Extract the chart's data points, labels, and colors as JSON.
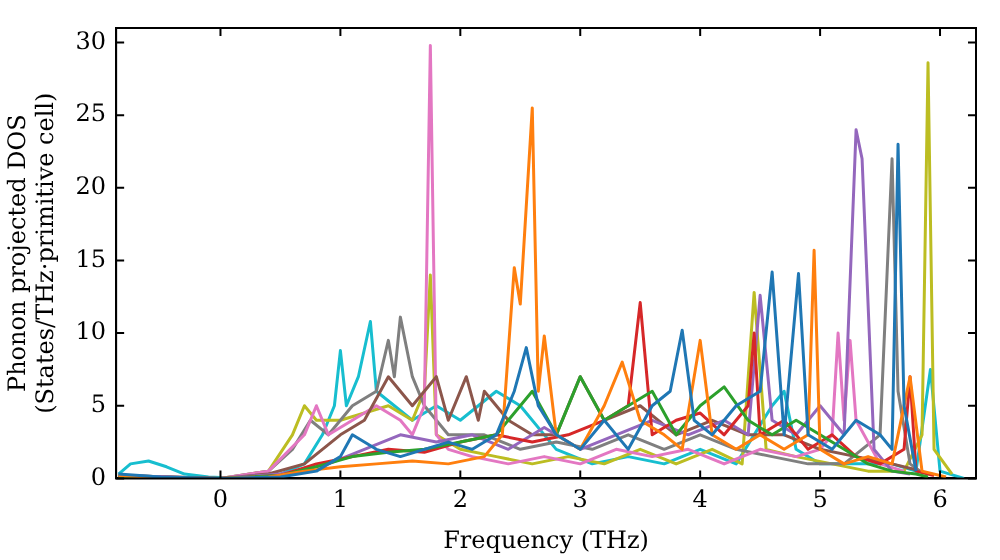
{
  "chart_data": {
    "type": "line",
    "xlabel": "Frequency (THz)",
    "ylabel": "Phonon projected DOS\n(States/THz·primitive cell)",
    "xlim": [
      -0.87,
      6.3
    ],
    "ylim": [
      0,
      31
    ],
    "xticks": [
      0,
      1,
      2,
      3,
      4,
      5,
      6
    ],
    "yticks": [
      0,
      5,
      10,
      15,
      20,
      25,
      30
    ],
    "legend": false,
    "marker": "none",
    "line_style": "solid",
    "series": [
      {
        "color": "#1f77b4",
        "x": [
          -0.85,
          -0.5,
          0,
          0.5,
          0.8,
          1.0,
          1.1,
          1.3,
          1.5,
          1.7,
          1.9,
          2.1,
          2.3,
          2.45,
          2.55,
          2.65,
          2.8,
          3.0,
          3.2,
          3.4,
          3.6,
          3.75,
          3.85,
          3.95,
          4.1,
          4.3,
          4.5,
          4.6,
          4.7,
          4.82,
          4.9,
          5.1,
          5.3,
          5.5,
          5.6,
          5.65,
          5.7,
          5.8
        ],
        "values": [
          0.3,
          0.1,
          0,
          0.1,
          0.5,
          1.5,
          3,
          2,
          1.5,
          2,
          2.5,
          2,
          3,
          6,
          9,
          5,
          3,
          2,
          4,
          2,
          5,
          6,
          10.2,
          4,
          3,
          5,
          6,
          14.2,
          3,
          14.1,
          3,
          2,
          4,
          3,
          2,
          23,
          5,
          0.5
        ]
      },
      {
        "color": "#ff7f0e",
        "x": [
          -0.85,
          -0.4,
          0,
          0.4,
          0.7,
          1.0,
          1.3,
          1.6,
          1.9,
          2.2,
          2.35,
          2.45,
          2.5,
          2.6,
          2.65,
          2.7,
          2.8,
          3.0,
          3.2,
          3.35,
          3.5,
          3.7,
          3.85,
          4.0,
          4.1,
          4.3,
          4.5,
          4.7,
          4.9,
          4.95,
          5.0,
          5.2,
          5.4,
          5.6,
          5.75,
          5.85,
          6.05
        ],
        "values": [
          0.2,
          0,
          0,
          0.1,
          0.5,
          0.8,
          1,
          1.2,
          1,
          1.5,
          3,
          14.5,
          12,
          25.5,
          6,
          9.8,
          3,
          2,
          5,
          8,
          4,
          3,
          2,
          9.5,
          3,
          2,
          3,
          2,
          3,
          15.7,
          2,
          1,
          1.5,
          1,
          7,
          0.5,
          0.1
        ]
      },
      {
        "color": "#2ca02c",
        "x": [
          -0.85,
          0,
          0.5,
          0.8,
          1.1,
          1.4,
          1.7,
          2.0,
          2.3,
          2.6,
          2.8,
          3.0,
          3.2,
          3.4,
          3.6,
          3.8,
          4.0,
          4.2,
          4.4,
          4.6,
          4.8,
          5.0,
          5.2,
          5.4,
          5.6,
          5.8,
          5.9
        ],
        "values": [
          0.1,
          0,
          0.2,
          0.8,
          1.5,
          1.8,
          2,
          2.5,
          3,
          6,
          3,
          7,
          4,
          5,
          6,
          3,
          5,
          6.3,
          4,
          3,
          4,
          3,
          2,
          1,
          0.5,
          0.3,
          0.1
        ]
      },
      {
        "color": "#d62728",
        "x": [
          -0.85,
          0,
          0.5,
          0.8,
          1.1,
          1.4,
          1.7,
          2.0,
          2.3,
          2.6,
          2.9,
          3.2,
          3.4,
          3.5,
          3.6,
          3.8,
          4.0,
          4.2,
          4.4,
          4.45,
          4.5,
          4.7,
          4.9,
          5.1,
          5.3,
          5.5,
          5.7,
          5.75,
          5.8,
          5.95
        ],
        "values": [
          0.1,
          0,
          0.2,
          1,
          1.5,
          2,
          1.8,
          2.5,
          3,
          2.5,
          3,
          4,
          5,
          12.1,
          3,
          4,
          4.5,
          3,
          5,
          10,
          3,
          4,
          2,
          3,
          1.5,
          1,
          2,
          7,
          0.5,
          0.2
        ]
      },
      {
        "color": "#9467bd",
        "x": [
          -0.85,
          0,
          0.5,
          0.9,
          1.2,
          1.5,
          1.8,
          2.1,
          2.4,
          2.7,
          3.0,
          3.3,
          3.6,
          3.9,
          4.2,
          4.4,
          4.5,
          4.6,
          4.8,
          5.0,
          5.2,
          5.3,
          5.35,
          5.45,
          5.6,
          5.75
        ],
        "values": [
          0.2,
          0,
          0.3,
          1,
          2,
          3,
          2.5,
          3,
          2,
          3.5,
          2,
          3,
          4,
          3,
          4,
          3,
          12.6,
          4,
          3,
          5,
          3,
          24,
          22,
          2,
          0.5,
          0.3
        ]
      },
      {
        "color": "#8c564b",
        "x": [
          -0.85,
          0,
          0.4,
          0.7,
          1.0,
          1.2,
          1.4,
          1.6,
          1.8,
          1.9,
          2.05,
          2.15,
          2.2,
          2.4,
          2.6,
          2.8,
          3.0,
          3.2,
          3.5,
          3.8,
          4.1,
          4.4,
          4.7,
          5.0,
          5.3,
          5.6,
          5.8
        ],
        "values": [
          0.2,
          0,
          0.3,
          1,
          3,
          4,
          7,
          5,
          7,
          4,
          7,
          4,
          6,
          4,
          3,
          3,
          7,
          4,
          5,
          3,
          4,
          3,
          3,
          2,
          1.5,
          1,
          0.6
        ]
      },
      {
        "color": "#e377c2",
        "x": [
          0,
          0.4,
          0.7,
          0.8,
          0.9,
          1.1,
          1.3,
          1.5,
          1.6,
          1.7,
          1.75,
          1.8,
          1.9,
          2.1,
          2.4,
          2.7,
          3.0,
          3.3,
          3.6,
          3.9,
          4.2,
          4.5,
          4.8,
          5.0,
          5.1,
          5.15,
          5.2,
          5.25,
          5.3,
          5.5,
          5.7
        ],
        "values": [
          0,
          0.5,
          3,
          5,
          3,
          4,
          5,
          4,
          3,
          5,
          29.8,
          3,
          2,
          1.5,
          1,
          1.5,
          1,
          2,
          1.5,
          2,
          1,
          2,
          1.5,
          2,
          3,
          10,
          4,
          9.5,
          4,
          1,
          0.5
        ]
      },
      {
        "color": "#7f7f7f",
        "x": [
          -0.85,
          0,
          0.4,
          0.6,
          0.75,
          0.9,
          1.1,
          1.3,
          1.4,
          1.45,
          1.5,
          1.6,
          1.7,
          1.9,
          2.2,
          2.5,
          2.8,
          3.1,
          3.4,
          3.7,
          4.0,
          4.3,
          4.6,
          4.9,
          5.2,
          5.5,
          5.6,
          5.65,
          5.75,
          5.85
        ],
        "values": [
          0.2,
          0,
          0.5,
          2,
          4,
          3,
          5,
          6,
          9.5,
          7,
          11.1,
          7,
          5,
          3,
          3,
          2,
          2.5,
          2,
          3,
          2,
          3,
          2,
          1.5,
          1,
          1,
          3,
          22,
          6,
          1,
          0.4
        ]
      },
      {
        "color": "#bcbd22",
        "x": [
          -0.85,
          0,
          0.4,
          0.6,
          0.7,
          0.8,
          1.0,
          1.2,
          1.4,
          1.6,
          1.7,
          1.75,
          1.8,
          2.0,
          2.3,
          2.6,
          2.9,
          3.2,
          3.5,
          3.8,
          4.1,
          4.35,
          4.45,
          4.55,
          4.8,
          5.1,
          5.4,
          5.7,
          5.85,
          5.9,
          5.95,
          6.1
        ],
        "values": [
          0.2,
          0,
          0.5,
          3,
          5,
          4,
          4,
          4.5,
          5,
          4,
          6,
          14,
          3,
          2,
          1.5,
          1,
          1.5,
          1,
          2,
          1,
          2,
          1,
          12.8,
          2,
          1.5,
          1,
          0.5,
          0.5,
          3,
          28.6,
          2,
          0.3
        ]
      },
      {
        "color": "#17becf",
        "x": [
          -0.85,
          -0.75,
          -0.6,
          -0.45,
          -0.3,
          -0.1,
          0.2,
          0.5,
          0.7,
          0.85,
          0.95,
          1.0,
          1.05,
          1.15,
          1.25,
          1.3,
          1.45,
          1.6,
          1.8,
          2.0,
          2.3,
          2.5,
          2.8,
          3.1,
          3.4,
          3.7,
          4.0,
          4.3,
          4.6,
          4.7,
          4.8,
          5.0,
          5.3,
          5.6,
          5.8,
          5.92,
          6.0,
          6.2
        ],
        "values": [
          0.3,
          1,
          1.2,
          0.8,
          0.3,
          0.1,
          0,
          0.3,
          1,
          3,
          5,
          8.8,
          5,
          7,
          10.8,
          6,
          5,
          4,
          5,
          4,
          6,
          5,
          2,
          1,
          1.5,
          1,
          2,
          1,
          5,
          6,
          2,
          1,
          1,
          1,
          0.5,
          7.5,
          0.5,
          0
        ]
      }
    ]
  }
}
